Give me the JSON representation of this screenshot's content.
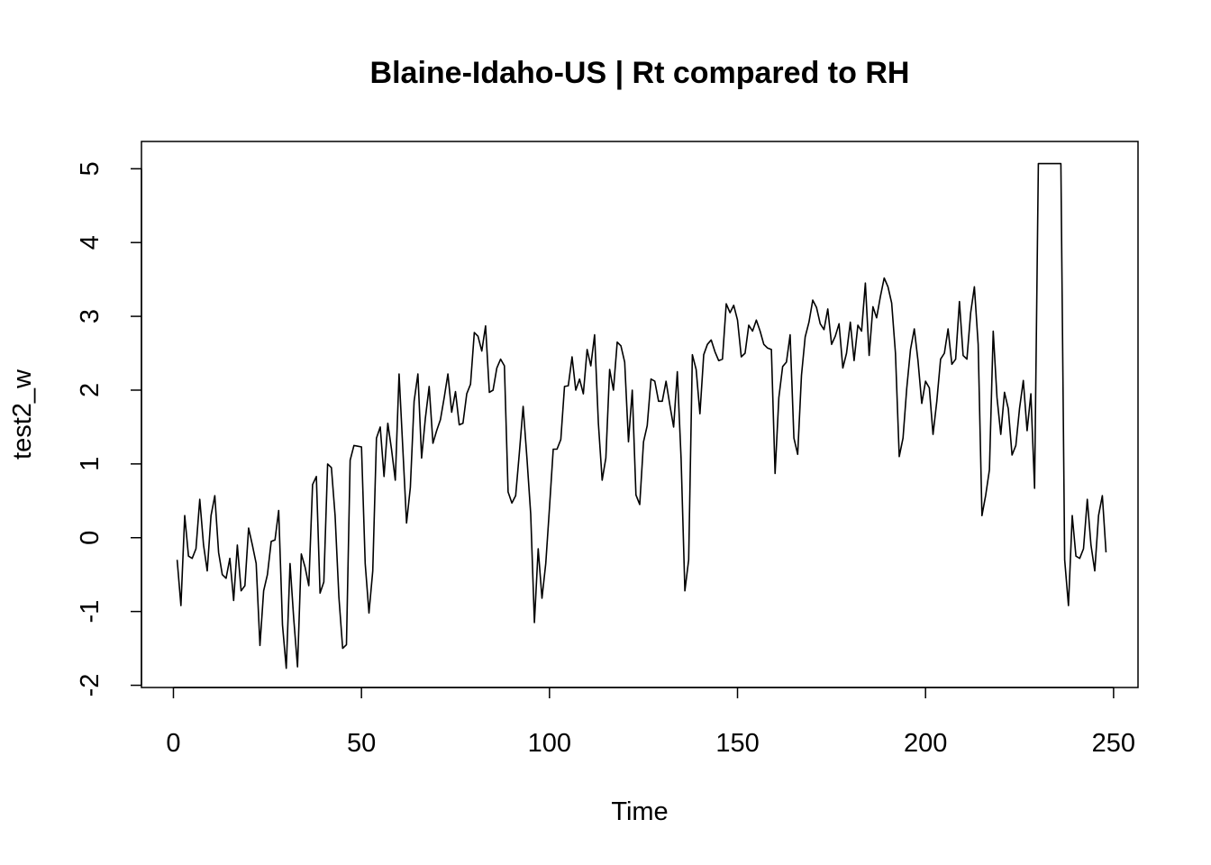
{
  "chart_data": {
    "type": "line",
    "title": "Blaine-Idaho-US | Rt compared to RH",
    "xlabel": "Time",
    "ylabel": "test2_w",
    "xlim": [
      -8.5,
      256.5
    ],
    "ylim": [
      -2.03,
      5.37
    ],
    "x_ticks": [
      0,
      50,
      100,
      150,
      200,
      250
    ],
    "x_tick_labels": [
      "0",
      "50",
      "100",
      "150",
      "200",
      "250"
    ],
    "y_ticks": [
      -2,
      -1,
      0,
      1,
      2,
      3,
      4,
      5
    ],
    "y_tick_labels": [
      "-2",
      "-1",
      "0",
      "1",
      "2",
      "3",
      "4",
      "5"
    ],
    "grid": false,
    "legend": "none",
    "line_color": "#000000",
    "series": [
      {
        "x": [
          1,
          2,
          3,
          4,
          5,
          6,
          7,
          8,
          9,
          10,
          11,
          12,
          13,
          14,
          15,
          16,
          17,
          18,
          19,
          20,
          21,
          22,
          23,
          24,
          25,
          26,
          27,
          28,
          29,
          30,
          31,
          32,
          33,
          34,
          35,
          36,
          37,
          38,
          39,
          40,
          41,
          42,
          43,
          44,
          45,
          46,
          47,
          48,
          49,
          50,
          51,
          52,
          53,
          54,
          55,
          56,
          57,
          58,
          59,
          60,
          61,
          62,
          63,
          64,
          65,
          66,
          67,
          68,
          69,
          70,
          71,
          72,
          73,
          74,
          75,
          76,
          77,
          78,
          79,
          80,
          81,
          82,
          83,
          84,
          85,
          86,
          87,
          88,
          89,
          90,
          91,
          92,
          93,
          94,
          95,
          96,
          97,
          98,
          99,
          100,
          101,
          102,
          103,
          104,
          105,
          106,
          107,
          108,
          109,
          110,
          111,
          112,
          113,
          114,
          115,
          116,
          117,
          118,
          119,
          120,
          121,
          122,
          123,
          124,
          125,
          126,
          127,
          128,
          129,
          130,
          131,
          132,
          133,
          134,
          135,
          136,
          137,
          138,
          139,
          140,
          141,
          142,
          143,
          144,
          145,
          146,
          147,
          148,
          149,
          150,
          151,
          152,
          153,
          154,
          155,
          156,
          157,
          158,
          159,
          160,
          161,
          162,
          163,
          164,
          165,
          166,
          167,
          168,
          169,
          170,
          171,
          172,
          173,
          174,
          175,
          176,
          177,
          178,
          179,
          180,
          181,
          182,
          183,
          184,
          185,
          186,
          187,
          188,
          189,
          190,
          191,
          192,
          193,
          194,
          195,
          196,
          197,
          198,
          199,
          200,
          201,
          202,
          203,
          204,
          205,
          206,
          207,
          208,
          209,
          210,
          211,
          212,
          213,
          214,
          215,
          216,
          217,
          218,
          219,
          220,
          221,
          222,
          223,
          224,
          225,
          226,
          227,
          228,
          229,
          230,
          231,
          232,
          233,
          234,
          235,
          236,
          237,
          238,
          239,
          240,
          241,
          242,
          243,
          244,
          245,
          246,
          247,
          248
        ],
        "values": [
          -0.3,
          -0.92,
          0.3,
          -0.25,
          -0.28,
          -0.15,
          0.52,
          -0.1,
          -0.45,
          0.3,
          0.57,
          -0.2,
          -0.5,
          -0.55,
          -0.28,
          -0.85,
          -0.1,
          -0.72,
          -0.65,
          0.13,
          -0.1,
          -0.35,
          -1.46,
          -0.72,
          -0.5,
          -0.05,
          -0.03,
          0.37,
          -1.18,
          -1.77,
          -0.35,
          -1.1,
          -1.75,
          -0.22,
          -0.4,
          -0.65,
          0.72,
          0.83,
          -0.75,
          -0.6,
          1.0,
          0.95,
          0.3,
          -0.8,
          -1.5,
          -1.45,
          1.05,
          1.25,
          1.24,
          1.23,
          -0.35,
          -1.02,
          -0.45,
          1.35,
          1.5,
          0.83,
          1.55,
          1.2,
          0.78,
          2.22,
          1.2,
          0.2,
          0.68,
          1.85,
          2.22,
          1.08,
          1.62,
          2.05,
          1.28,
          1.45,
          1.6,
          1.9,
          2.22,
          1.7,
          1.98,
          1.53,
          1.55,
          1.95,
          2.08,
          2.78,
          2.73,
          2.53,
          2.87,
          1.97,
          2.0,
          2.3,
          2.42,
          2.33,
          0.62,
          0.47,
          0.57,
          1.15,
          1.78,
          1.08,
          0.32,
          -1.15,
          -0.15,
          -0.82,
          -0.35,
          0.4,
          1.2,
          1.2,
          1.33,
          2.05,
          2.06,
          2.45,
          2.0,
          2.15,
          1.95,
          2.55,
          2.33,
          2.75,
          1.55,
          0.78,
          1.08,
          2.28,
          2.0,
          2.65,
          2.6,
          2.38,
          1.3,
          2.0,
          0.58,
          0.45,
          1.3,
          1.52,
          2.15,
          2.12,
          1.85,
          1.85,
          2.12,
          1.8,
          1.5,
          2.25,
          1.07,
          -0.72,
          -0.3,
          2.48,
          2.28,
          1.68,
          2.48,
          2.62,
          2.68,
          2.52,
          2.4,
          2.42,
          3.17,
          3.05,
          3.15,
          2.95,
          2.45,
          2.5,
          2.88,
          2.8,
          2.95,
          2.8,
          2.62,
          2.57,
          2.55,
          0.87,
          1.9,
          2.32,
          2.38,
          2.75,
          1.35,
          1.13,
          2.2,
          2.72,
          2.92,
          3.22,
          3.12,
          2.9,
          2.82,
          3.1,
          2.62,
          2.73,
          2.9,
          2.3,
          2.5,
          2.92,
          2.4,
          2.88,
          2.8,
          3.45,
          2.47,
          3.13,
          2.98,
          3.27,
          3.52,
          3.4,
          3.18,
          2.5,
          1.1,
          1.35,
          2.02,
          2.55,
          2.83,
          2.4,
          1.82,
          2.12,
          2.03,
          1.4,
          1.85,
          2.42,
          2.5,
          2.83,
          2.35,
          2.42,
          3.2,
          2.47,
          2.42,
          3.05,
          3.4,
          2.62,
          0.3,
          0.58,
          0.92,
          2.8,
          1.9,
          1.4,
          1.97,
          1.75,
          1.12,
          1.25,
          1.75,
          2.13,
          1.45,
          1.95,
          0.67,
          5.07,
          5.07,
          5.07,
          5.07,
          5.07,
          5.07,
          5.07,
          -0.3,
          -0.92,
          0.3,
          -0.25,
          -0.28,
          -0.15,
          0.52,
          -0.1,
          -0.45,
          0.3,
          0.57,
          -0.2
        ]
      }
    ]
  }
}
